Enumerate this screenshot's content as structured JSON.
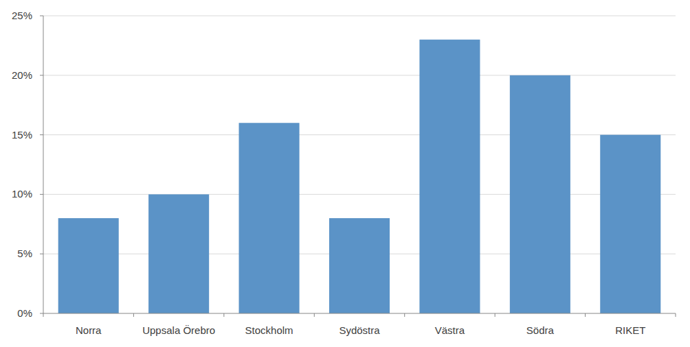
{
  "chart_data": {
    "type": "bar",
    "categories": [
      "Norra",
      "Uppsala Örebro",
      "Stockholm",
      "Sydöstra",
      "Västra",
      "Södra",
      "RIKET"
    ],
    "values": [
      8,
      10,
      16,
      8,
      23,
      20,
      15
    ],
    "color": "#5b93c7",
    "ylim": [
      0,
      25
    ],
    "yticks": [
      {
        "value": 0,
        "label": "0%"
      },
      {
        "value": 5,
        "label": "5%"
      },
      {
        "value": 10,
        "label": "10%"
      },
      {
        "value": 15,
        "label": "15%"
      },
      {
        "value": 20,
        "label": "20%"
      },
      {
        "value": 25,
        "label": "25%"
      }
    ],
    "grid": true
  }
}
